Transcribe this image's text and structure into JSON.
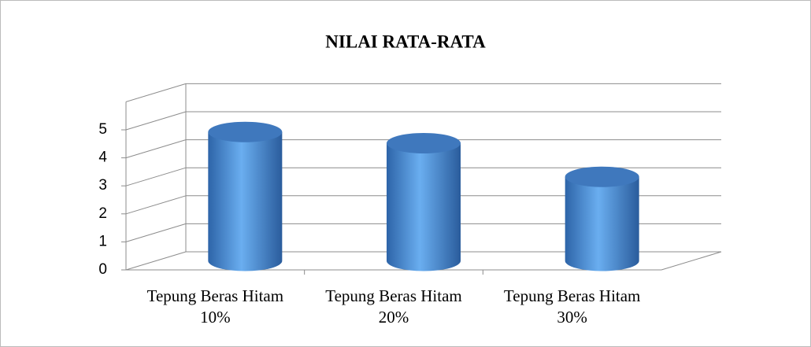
{
  "chart_data": {
    "type": "bar",
    "title": "NILAI RATA-RATA",
    "categories": [
      "Tepung Beras Hitam 10%",
      "Tepung Beras Hitam 20%",
      "Tepung Beras Hitam 30%"
    ],
    "values": [
      4.6,
      4.2,
      3.0
    ],
    "color": "#4a8ad6",
    "ylim": [
      0,
      6
    ],
    "yticks": [
      0,
      1,
      2,
      3,
      4,
      5
    ],
    "grid": true
  }
}
